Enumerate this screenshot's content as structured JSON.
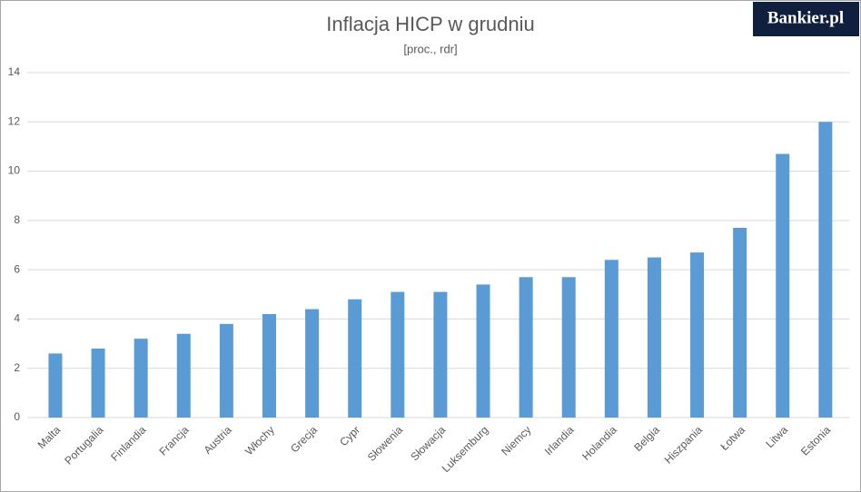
{
  "chart_data": {
    "type": "bar",
    "title": "Inflacja HICP w grudniu",
    "subtitle": "[proc., rdr]",
    "categories": [
      "Malta",
      "Portugalia",
      "Finlandia",
      "Francja",
      "Austria",
      "Włochy",
      "Grecja",
      "Cypr",
      "Słowenia",
      "Słowacja",
      "Luksemburg",
      "Niemcy",
      "Irlandia",
      "Holandia",
      "Belgia",
      "Hiszpania",
      "Łotwa",
      "Litwa",
      "Estonia"
    ],
    "values": [
      2.6,
      2.8,
      3.2,
      3.4,
      3.8,
      4.2,
      4.4,
      4.8,
      5.1,
      5.1,
      5.4,
      5.7,
      5.7,
      6.4,
      6.5,
      6.7,
      7.7,
      10.7,
      12.0
    ],
    "color": "#5b9bd5",
    "ylim": [
      0,
      14
    ],
    "yticks": [
      0,
      2,
      4,
      6,
      8,
      10,
      12,
      14
    ],
    "grid": true
  },
  "logo": "Bankier.pl"
}
